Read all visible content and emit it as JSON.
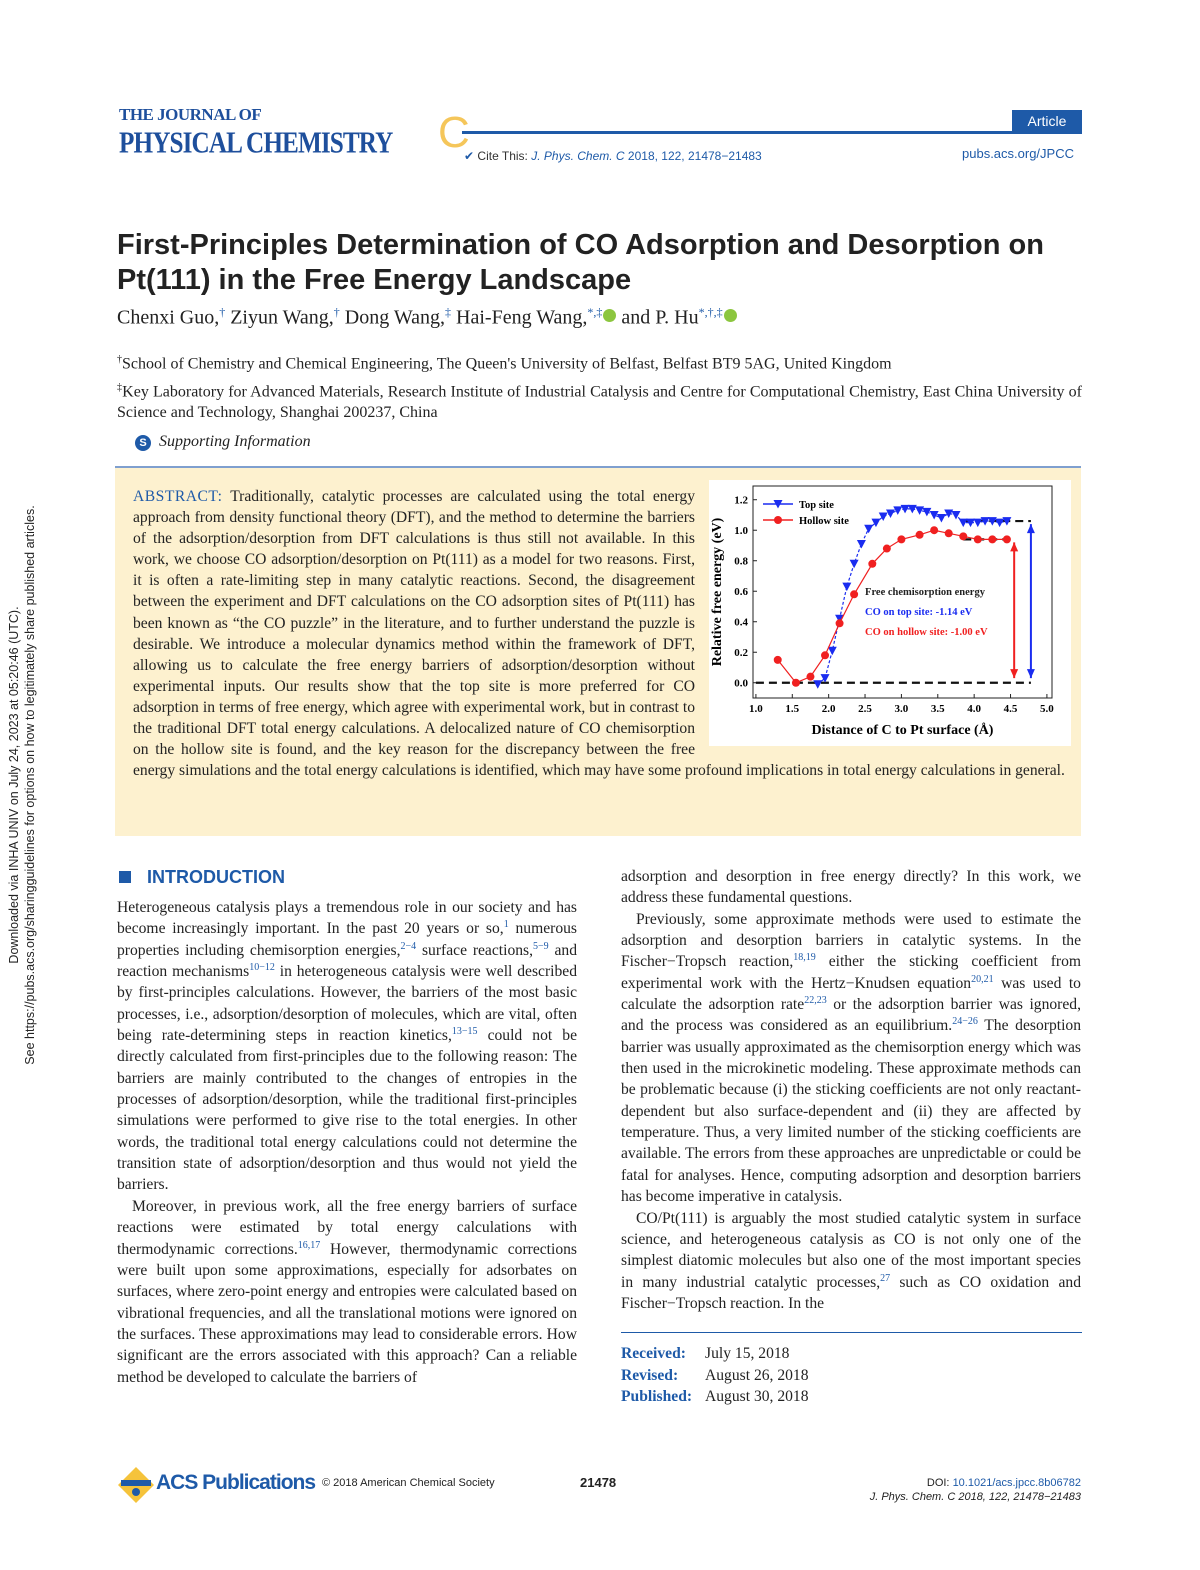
{
  "header": {
    "journal_line1": "THE JOURNAL OF",
    "journal_line2": "PHYSICAL CHEMISTRY",
    "journal_letter": "C",
    "article_type": "Article",
    "cite_label": "Cite This:",
    "cite_journal": "J. Phys. Chem. C",
    "cite_rest": "2018, 122, 21478−21483",
    "url": "pubs.acs.org/JPCC"
  },
  "title": "First-Principles Determination of CO Adsorption and Desorption on Pt(111) in the Free Energy Landscape",
  "authors": [
    {
      "name": "Chenxi Guo,",
      "sup": "†"
    },
    {
      "name": "Ziyun Wang,",
      "sup": "†"
    },
    {
      "name": "Dong Wang,",
      "sup": "‡"
    },
    {
      "name": "Hai-Feng Wang,",
      "sup": "*,‡"
    },
    {
      "name": "and P. Hu",
      "sup": "*,†,‡"
    }
  ],
  "affiliations": [
    {
      "mark": "†",
      "text": "School of Chemistry and Chemical Engineering, The Queen's University of Belfast, Belfast BT9 5AG, United Kingdom"
    },
    {
      "mark": "‡",
      "text": "Key Laboratory for Advanced Materials, Research Institute of Industrial Catalysis and Centre for Computational Chemistry, East China University of Science and Technology, Shanghai 200237, China"
    }
  ],
  "supporting_info": {
    "icon": "S",
    "label": "Supporting Information"
  },
  "abstract": {
    "label": "ABSTRACT:",
    "text": "Traditionally, catalytic processes are calculated using the total energy approach from density functional theory (DFT), and the method to determine the barriers of the adsorption/desorption from DFT calculations is thus still not available. In this work, we choose CO adsorption/desorption on Pt(111) as a model for two reasons. First, it is often a rate-limiting step in many catalytic reactions. Second, the disagreement between the experiment and DFT calculations on the CO adsorption sites of Pt(111) has been known as “the CO puzzle” in the literature, and to further understand the puzzle is desirable. We introduce a molecular dynamics method within the framework of DFT, allowing us to calculate the free energy barriers of adsorption/desorption without experimental inputs. Our results show that the top site is more preferred for CO adsorption in terms of free energy, which agree with experimental work, but in contrast to the traditional DFT total energy calculations. A delocalized nature of CO chemisorption on the hollow site is found, and the key reason for the discrepancy between the free energy simulations and the total energy calculations is identified, which may have some profound implications in total energy calculations in general."
  },
  "chart_data": {
    "type": "line",
    "xlabel": "Distance of C to Pt surface (Å)",
    "ylabel": "Relative free energy (eV)",
    "xlim": [
      0.96,
      5.07
    ],
    "ylim": [
      -0.1,
      1.29
    ],
    "xticks": [
      "1.0",
      "1.5",
      "2.0",
      "2.5",
      "3.0",
      "3.5",
      "4.0",
      "4.5",
      "5.0"
    ],
    "yticks": [
      "0.0",
      "0.2",
      "0.4",
      "0.6",
      "0.8",
      "1.0",
      "1.2"
    ],
    "legend_position": "top-left",
    "series": [
      {
        "name": "Top site",
        "color": "#1a2cf0",
        "marker": "triangle-down",
        "x": [
          1.85,
          1.95,
          2.05,
          2.15,
          2.25,
          2.35,
          2.45,
          2.55,
          2.65,
          2.75,
          2.85,
          2.95,
          3.05,
          3.15,
          3.25,
          3.35,
          3.45,
          3.55,
          3.65,
          3.75,
          3.85,
          3.95,
          4.05,
          4.15,
          4.25,
          4.35,
          4.45
        ],
        "y": [
          -0.01,
          0.03,
          0.21,
          0.42,
          0.63,
          0.78,
          0.91,
          1.01,
          1.05,
          1.09,
          1.11,
          1.13,
          1.14,
          1.14,
          1.13,
          1.12,
          1.1,
          1.08,
          1.11,
          1.1,
          1.05,
          1.05,
          1.05,
          1.06,
          1.06,
          1.05,
          1.06
        ]
      },
      {
        "name": "Hollow site",
        "color": "#f02020",
        "marker": "circle",
        "x": [
          1.3,
          1.55,
          1.75,
          1.95,
          2.15,
          2.35,
          2.6,
          2.8,
          3.0,
          3.25,
          3.45,
          3.65,
          3.85,
          4.05,
          4.25,
          4.45
        ],
        "y": [
          0.15,
          0.0,
          0.04,
          0.18,
          0.39,
          0.58,
          0.78,
          0.88,
          0.94,
          0.97,
          1.0,
          0.98,
          0.96,
          0.94,
          0.94,
          0.94
        ]
      }
    ],
    "reference_lines": [
      {
        "y": 0.0,
        "x": [
          1.0,
          4.78
        ]
      },
      {
        "y": 1.06,
        "x": [
          3.85,
          4.78
        ]
      },
      {
        "y": 0.94,
        "x": [
          3.85,
          4.55
        ]
      }
    ],
    "arrows": [
      {
        "x": 4.55,
        "y": [
          0.03,
          0.92
        ],
        "color": "#f02020"
      },
      {
        "x": 4.78,
        "y": [
          0.03,
          1.04
        ],
        "color": "#1a2cf0"
      }
    ],
    "annotations": [
      {
        "text": "Free chemisorption energy",
        "color": "#222222"
      },
      {
        "text": "CO on top site: -1.14 eV",
        "color": "#1a2cf0"
      },
      {
        "text": "CO on hollow site: -1.00 eV",
        "color": "#f02020"
      }
    ]
  },
  "intro": {
    "heading": "INTRODUCTION",
    "left": [
      [
        {
          "t": "Heterogeneous catalysis plays a tremendous role in our society and has become increasingly important. In the past 20 years or so,"
        },
        {
          "s": "1"
        },
        {
          "t": " numerous properties including chemisorption energies,"
        },
        {
          "s": "2−4"
        },
        {
          "t": " surface reactions,"
        },
        {
          "s": "5−9"
        },
        {
          "t": " and reaction mechanisms"
        },
        {
          "s": "10−12"
        },
        {
          "t": " in heterogeneous catalysis were well described by first-principles calculations. However, the barriers of the most basic processes, i.e., adsorption/desorption of molecules, which are vital, often being rate-determining steps in reaction kinetics,"
        },
        {
          "s": "13−15"
        },
        {
          "t": " could not be directly calculated from first-principles due to the following reason: The barriers are mainly contributed to the changes of entropies in the processes of adsorption/desorption, while the traditional first-principles simulations were performed to give rise to the total energies. In other words, the traditional total energy calculations could not determine the transition state of adsorption/desorption and thus would not yield the barriers."
        }
      ],
      [
        {
          "t": "Moreover, in previous work, all the free energy barriers of surface reactions were estimated by total energy calculations with thermodynamic corrections."
        },
        {
          "s": "16,17"
        },
        {
          "t": " However, thermodynamic corrections were built upon some approximations, especially for adsorbates on surfaces, where zero-point energy and entropies were calculated based on vibrational frequencies, and all the translational motions were ignored on the surfaces. These approximations may lead to considerable errors. How significant are the errors associated with this approach? Can a reliable method be developed to calculate the barriers of"
        }
      ]
    ],
    "right": [
      [
        {
          "t": "adsorption and desorption in free energy directly? In this work, we address these fundamental questions."
        }
      ],
      [
        {
          "t": "Previously, some approximate methods were used to estimate the adsorption and desorption barriers in catalytic systems. In the Fischer−Tropsch reaction,"
        },
        {
          "s": "18,19"
        },
        {
          "t": " either the sticking coefficient from experimental work with the Hertz−Knudsen equation"
        },
        {
          "s": "20,21"
        },
        {
          "t": " was used to calculate the adsorption rate"
        },
        {
          "s": "22,23"
        },
        {
          "t": " or the adsorption barrier was ignored, and the process was considered as an equilibrium."
        },
        {
          "s": "24−26"
        },
        {
          "t": " The desorption barrier was usually approximated as the chemisorption energy which was then used in the microkinetic modeling. These approximate methods can be problematic because (i) the sticking coefficients are not only reactant-dependent but also surface-dependent and (ii) they are affected by temperature. Thus, a very limited number of the sticking coefficients are available. The errors from these approaches are unpredictable or could be fatal for analyses. Hence, computing adsorption and desorption barriers has become imperative in catalysis."
        }
      ],
      [
        {
          "t": "CO/Pt(111) is arguably the most studied catalytic system in surface science, and heterogeneous catalysis as CO is not only one of the simplest diatomic molecules but also one of the most important species in many industrial catalytic processes,"
        },
        {
          "s": "27"
        },
        {
          "t": " such as CO oxidation and Fischer−Tropsch reaction. In the"
        }
      ]
    ]
  },
  "dates": [
    {
      "label": "Received:",
      "value": "July 15, 2018"
    },
    {
      "label": "Revised:",
      "value": "August 26, 2018"
    },
    {
      "label": "Published:",
      "value": "August 30, 2018"
    }
  ],
  "footer": {
    "publisher": "ACS Publications",
    "copyright": "© 2018 American Chemical Society",
    "page": "21478",
    "doi_label": "DOI:",
    "doi": "10.1021/acs.jpcc.8b06782",
    "citation": "J. Phys. Chem. C 2018, 122, 21478−21483"
  },
  "sidebar": {
    "line1": "Downloaded via INHA UNIV on July 24, 2023 at 05:20:46 (UTC).",
    "line2": "See https://pubs.acs.org/sharingguidelines for options on how to legitimately share published articles."
  },
  "colors": {
    "accent": "#1e5aa8",
    "abstract_bg": "#fdf1cf",
    "logo_c": "#f5c65a",
    "orcid": "#8cc63f"
  }
}
